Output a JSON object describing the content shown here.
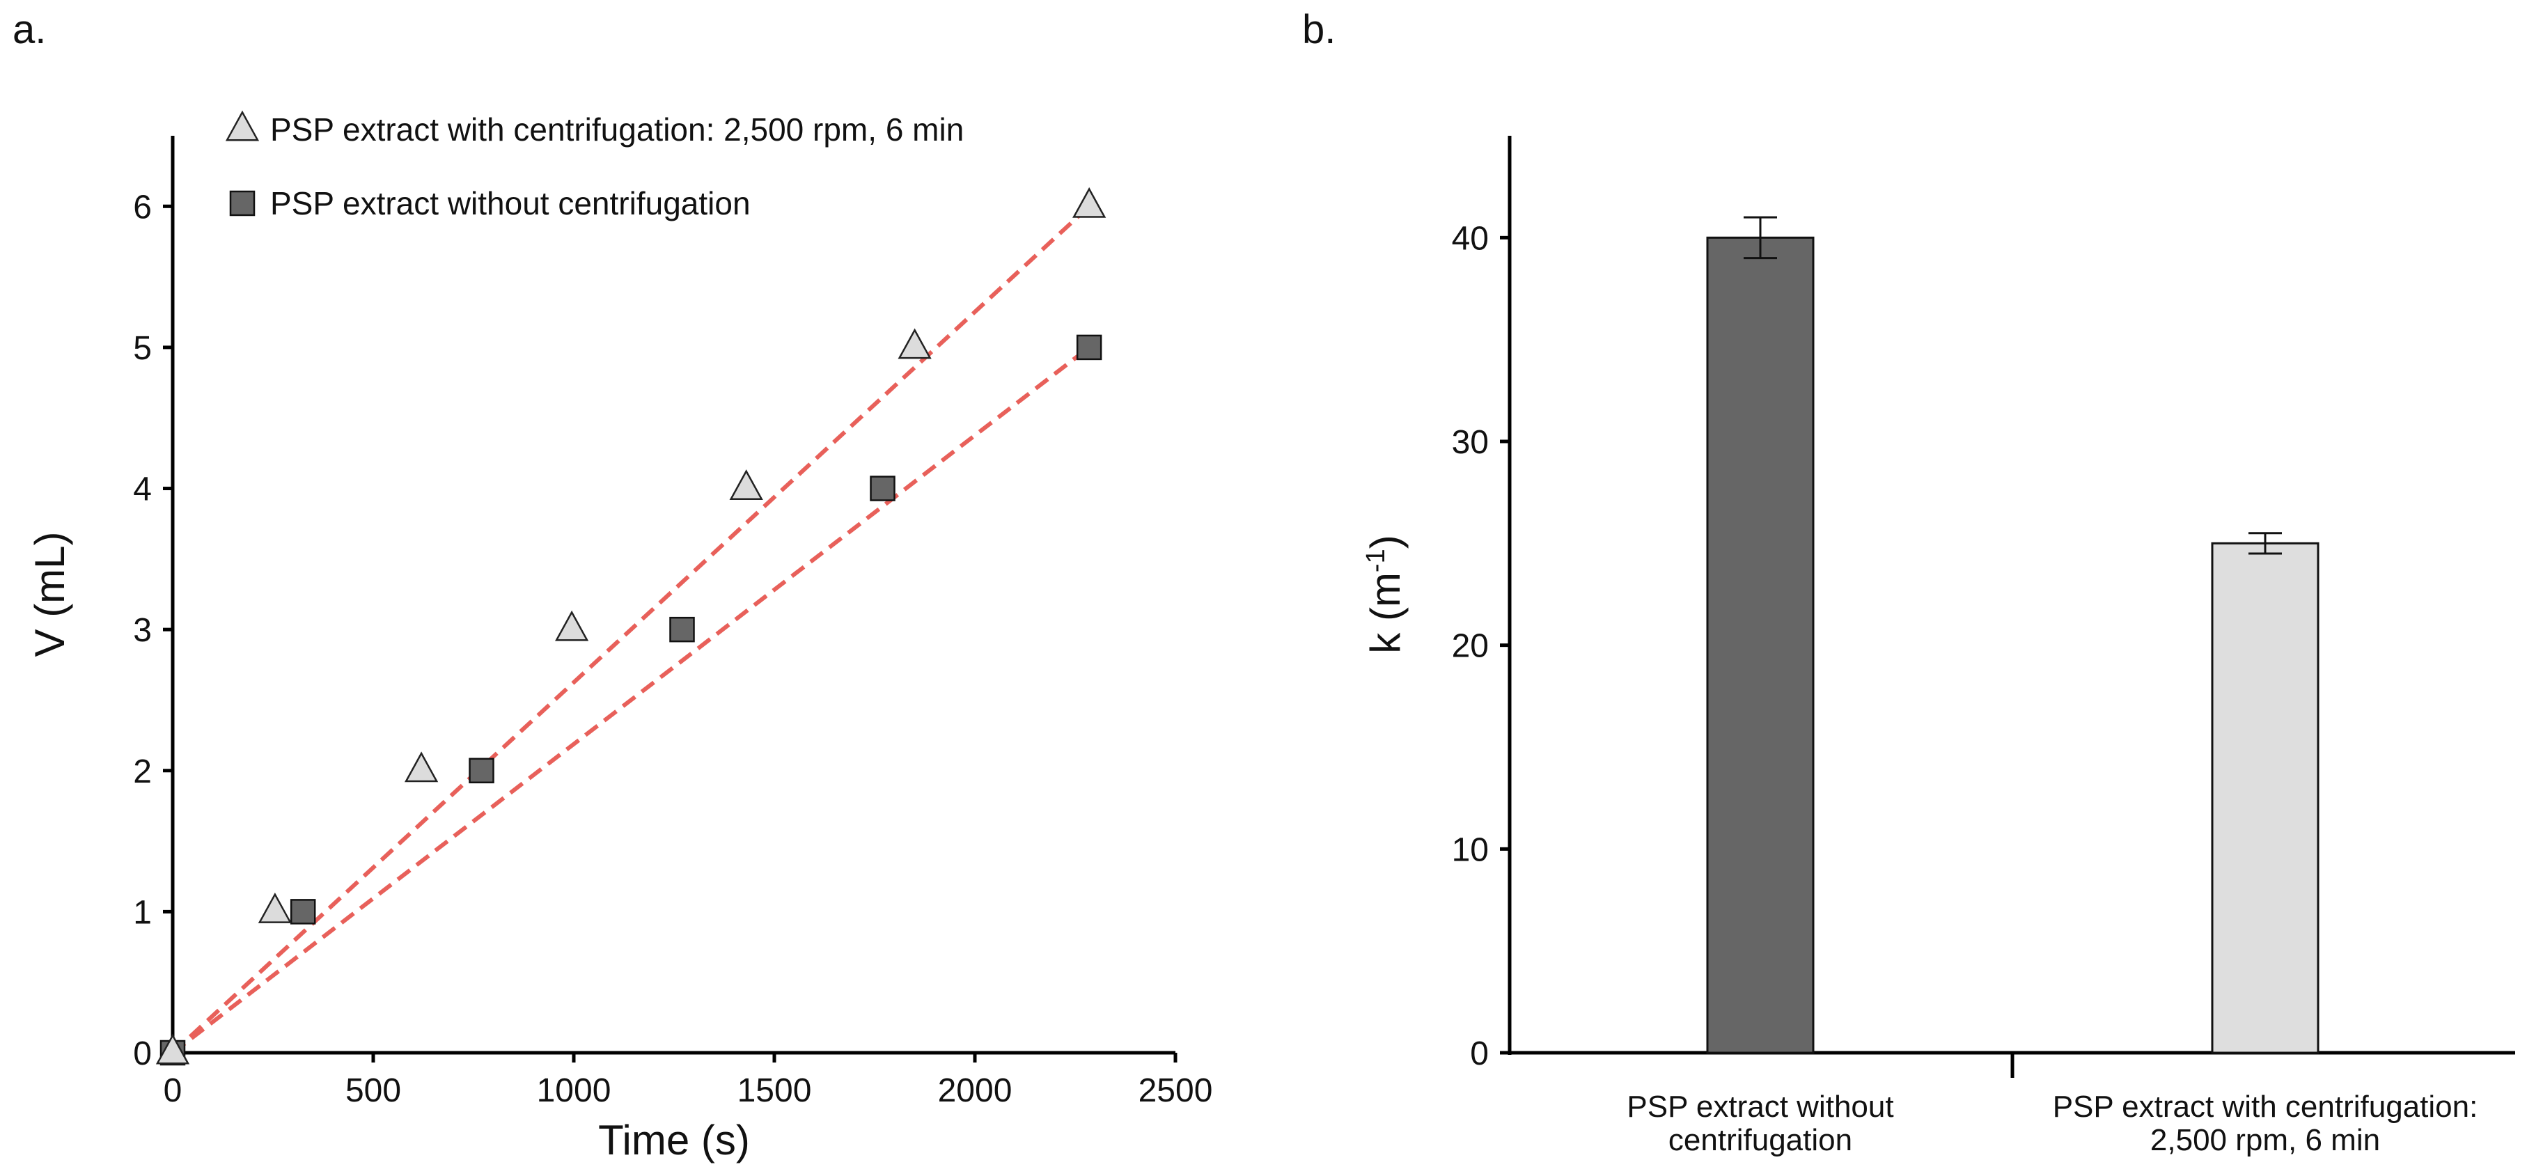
{
  "panels": {
    "a": "a.",
    "b": "b."
  },
  "chart_data": [
    {
      "type": "scatter",
      "title": "",
      "xlabel": "Time (s)",
      "ylabel": "V (mL)",
      "xlim": [
        0,
        2500
      ],
      "ylim": [
        0,
        6.5
      ],
      "xticks": [
        0,
        500,
        1000,
        1500,
        2000,
        2500
      ],
      "yticks": [
        0,
        1,
        2,
        3,
        4,
        5,
        6
      ],
      "legend_position": "top-left",
      "fit_line_color": "#e8605a",
      "series": [
        {
          "name": "PSP extract with centrifugation: 2,500 rpm, 6 min",
          "marker": "triangle",
          "color": "#dcdcdc",
          "x": [
            0,
            255,
            620,
            995,
            1430,
            1850,
            2285
          ],
          "y": [
            0,
            1,
            2,
            3,
            4,
            5,
            6
          ],
          "fit": [
            [
              0,
              0
            ],
            [
              2285,
              6
            ]
          ]
        },
        {
          "name": "PSP extract without centrifugation",
          "marker": "square",
          "color": "#666666",
          "x": [
            0,
            325,
            770,
            1270,
            1770,
            2285
          ],
          "y": [
            0,
            1,
            2,
            3,
            4,
            5
          ],
          "fit": [
            [
              0,
              0
            ],
            [
              2285,
              5
            ]
          ]
        }
      ]
    },
    {
      "type": "bar",
      "title": "",
      "xlabel": "",
      "ylabel": "k (m-1)",
      "ylabel_main": "k (m",
      "ylabel_sup": "-1",
      "ylabel_close": ")",
      "ylim": [
        0,
        45
      ],
      "yticks": [
        0,
        10,
        20,
        30,
        40
      ],
      "categories": [
        [
          "PSP extract without",
          "centrifugation"
        ],
        [
          "PSP extract with centrifugation:",
          "2,500 rpm, 6 min"
        ]
      ],
      "values": [
        40,
        25
      ],
      "errors": [
        1.0,
        0.5
      ],
      "colors": [
        "#666666",
        "#dedede"
      ]
    }
  ]
}
